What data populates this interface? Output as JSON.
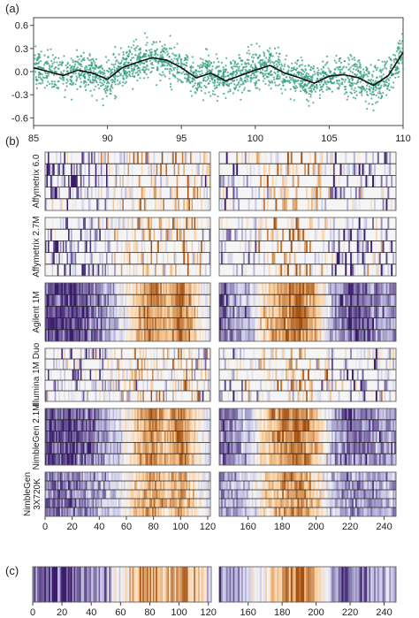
{
  "panels": {
    "a": "(a)",
    "b": "(b)",
    "c": "(c)"
  },
  "colors": {
    "scatter": "#2f9e7e",
    "smooth": "#111111",
    "purple_dark": "#3b1d6b",
    "orange_dark": "#a24e0d",
    "neutral": "#f5f5f5"
  },
  "chart_data": [
    {
      "type": "scatter",
      "panel": "(a)",
      "title": "",
      "xlabel": "",
      "ylabel": "",
      "xlim": [
        85,
        110
      ],
      "ylim": [
        -0.7,
        0.7
      ],
      "x_ticks": [
        85,
        90,
        95,
        100,
        105,
        110
      ],
      "x_tick_labels": [
        "85",
        "90",
        "95",
        "100",
        "105",
        "110"
      ],
      "y_ticks": [
        -0.6,
        -0.3,
        0.0,
        0.3,
        0.6
      ],
      "y_tick_labels": [
        "-0.6",
        "-0.3",
        "0.0",
        "0.3",
        "0.6"
      ],
      "points_scatter_sd": 0.17,
      "grid": false,
      "smooth_line": {
        "x": [
          85,
          86,
          87,
          88,
          89,
          90,
          91,
          92,
          93,
          94,
          95,
          96,
          97,
          98,
          99,
          100,
          101,
          102,
          103,
          104,
          105,
          106,
          107,
          108,
          109,
          110
        ],
        "y": [
          0.05,
          0.0,
          -0.05,
          0.02,
          -0.02,
          -0.1,
          0.05,
          0.12,
          0.18,
          0.15,
          0.05,
          -0.08,
          -0.02,
          -0.12,
          -0.05,
          0.02,
          0.08,
          -0.02,
          -0.08,
          -0.15,
          -0.06,
          -0.04,
          -0.08,
          -0.18,
          -0.05,
          0.25
        ]
      }
    },
    {
      "type": "heatmap",
      "panel": "(b)",
      "color_scale": "purple (negative) to white to orange (positive)",
      "x_range": [
        0,
        247
      ],
      "x_break": [
        122,
        143
      ],
      "x_ticks": [
        0,
        20,
        40,
        60,
        80,
        100,
        120,
        160,
        180,
        200,
        220,
        240
      ],
      "x_tick_labels": [
        "0",
        "20",
        "40",
        "60",
        "80",
        "100",
        "120",
        "160",
        "180",
        "200",
        "220",
        "240"
      ],
      "rows_per_platform": 5,
      "platforms": [
        {
          "name": "Affymetrix 6.0",
          "intensity": 0.35
        },
        {
          "name": "Affymetrix 2.7M",
          "intensity": 0.4
        },
        {
          "name": "Agilent 1M",
          "intensity": 1.0
        },
        {
          "name": "Illumina 1M Duo",
          "intensity": 0.3
        },
        {
          "name": "NimbleGen 2.1M",
          "intensity": 0.95
        },
        {
          "name": "NimbleGen 3X720K",
          "intensity": 0.75
        }
      ],
      "consensus_profile": {
        "x": [
          0,
          10,
          20,
          30,
          40,
          50,
          60,
          70,
          80,
          90,
          100,
          110,
          120,
          143,
          150,
          160,
          170,
          180,
          190,
          200,
          210,
          220,
          230,
          240,
          247
        ],
        "value": [
          -0.9,
          -0.85,
          -0.9,
          -0.8,
          -0.6,
          -0.4,
          0.0,
          0.5,
          0.8,
          0.4,
          0.85,
          0.3,
          -0.2,
          -0.8,
          -0.6,
          -0.4,
          0.3,
          0.7,
          0.9,
          0.5,
          -0.5,
          -0.8,
          -0.7,
          -0.5,
          -0.6
        ]
      }
    },
    {
      "type": "heatmap",
      "panel": "(c)",
      "x_range": [
        0,
        247
      ],
      "x_break": [
        122,
        143
      ],
      "x_ticks": [
        0,
        20,
        40,
        60,
        80,
        100,
        120,
        160,
        180,
        200,
        220,
        240
      ],
      "x_tick_labels": [
        "0",
        "20",
        "40",
        "60",
        "80",
        "100",
        "120",
        "160",
        "180",
        "200",
        "220",
        "240"
      ],
      "rows": 1,
      "profile": {
        "x": [
          0,
          10,
          20,
          30,
          40,
          50,
          60,
          70,
          80,
          90,
          100,
          110,
          120,
          143,
          150,
          160,
          170,
          180,
          190,
          200,
          210,
          220,
          230,
          240,
          247
        ],
        "value": [
          -0.9,
          -0.8,
          -0.9,
          -0.85,
          -0.6,
          -0.3,
          0.0,
          0.4,
          0.7,
          0.3,
          0.85,
          0.4,
          -0.1,
          -0.85,
          -0.5,
          -0.3,
          0.2,
          0.6,
          0.9,
          0.4,
          -0.6,
          -0.8,
          -0.6,
          -0.4,
          -0.5
        ]
      }
    }
  ]
}
